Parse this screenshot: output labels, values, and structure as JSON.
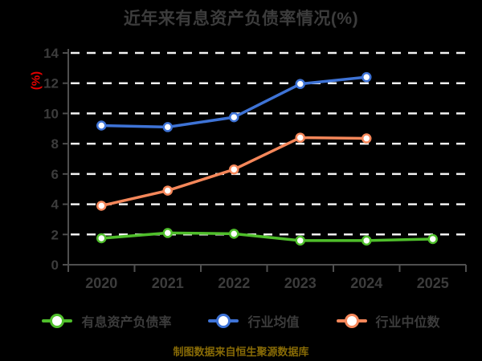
{
  "page": {
    "source_note": "制图数据来自恒生聚源数据库"
  },
  "colors": {
    "background": "#000000",
    "title": "#3c3c3c",
    "axis": "#4f4f4f",
    "tick_label": "#3c3c3c",
    "gridline": "#f2f2f2",
    "ylabel": "#e60000",
    "legend_text": "#3c3c3c",
    "source_note": "#876a06",
    "marker_fill": "#ffffff"
  },
  "chart_data": {
    "type": "line",
    "title": "近年来有息资产负债率情况(%)",
    "ylabel": "(%)",
    "xlabel": "",
    "categories": [
      "2020",
      "2021",
      "2022",
      "2023",
      "2024",
      "2025"
    ],
    "ylim": [
      0,
      14
    ],
    "y_tick_step": 2,
    "y_tick_labels": [
      "0",
      "2",
      "4",
      "6",
      "8",
      "10",
      "12",
      "14"
    ],
    "grid": "horizontal-dashed",
    "legend_position": "bottom",
    "series": [
      {
        "name": "有息资产负债率",
        "color": "#4fbe2b",
        "values": [
          1.75,
          2.1,
          2.05,
          1.6,
          1.6,
          1.7
        ]
      },
      {
        "name": "行业均值",
        "color": "#3e73d6",
        "values": [
          9.2,
          9.1,
          9.75,
          11.95,
          12.4,
          null
        ]
      },
      {
        "name": "行业中位数",
        "color": "#f5875a",
        "values": [
          3.9,
          4.9,
          6.3,
          8.4,
          8.35,
          null
        ]
      }
    ]
  }
}
